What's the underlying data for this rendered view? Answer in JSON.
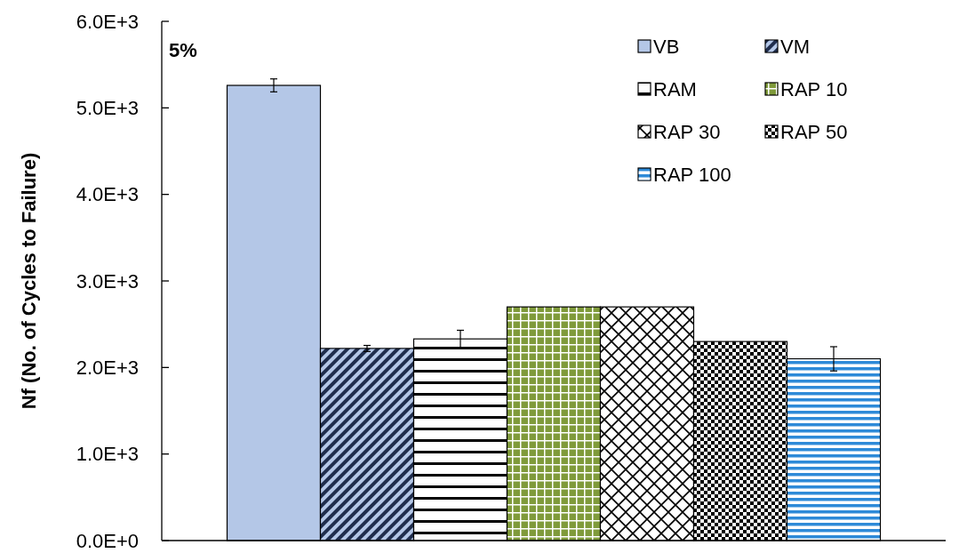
{
  "chart_data": {
    "type": "bar",
    "ylabel": "Nf (No. of Cycles to Failure)",
    "annotations": [
      "5%"
    ],
    "categories": [
      null
    ],
    "series": [
      {
        "name": "VB",
        "color": "#b4c7e7",
        "values": [
          5260
        ],
        "errors": [
          75
        ]
      },
      {
        "name": "VM",
        "color": "#1f2d4d",
        "values": [
          2220
        ],
        "errors": [
          35
        ]
      },
      {
        "name": "RAM",
        "color": "#000000",
        "values": [
          2330
        ],
        "errors": [
          100
        ]
      },
      {
        "name": "RAP 10",
        "color": "#7f9a3a",
        "values": [
          2700
        ]
      },
      {
        "name": "RAP 30",
        "color": "#000000",
        "values": [
          2700
        ]
      },
      {
        "name": "RAP 50",
        "color": "#000000",
        "values": [
          2300
        ]
      },
      {
        "name": "RAP 100",
        "color": "#2e8ad8",
        "values": [
          2100
        ],
        "errors": [
          140
        ]
      }
    ],
    "ylim": [
      0,
      6000
    ],
    "yticks": [
      {
        "value": 0,
        "label": "0.0E+0"
      },
      {
        "value": 1000,
        "label": "1.0E+3"
      },
      {
        "value": 2000,
        "label": "2.0E+3"
      },
      {
        "value": 3000,
        "label": "3.0E+3"
      },
      {
        "value": 4000,
        "label": "4.0E+3"
      },
      {
        "value": 5000,
        "label": "5.0E+3"
      },
      {
        "value": 6000,
        "label": "6.0E+3"
      }
    ],
    "legend": "top right",
    "grid": false
  }
}
